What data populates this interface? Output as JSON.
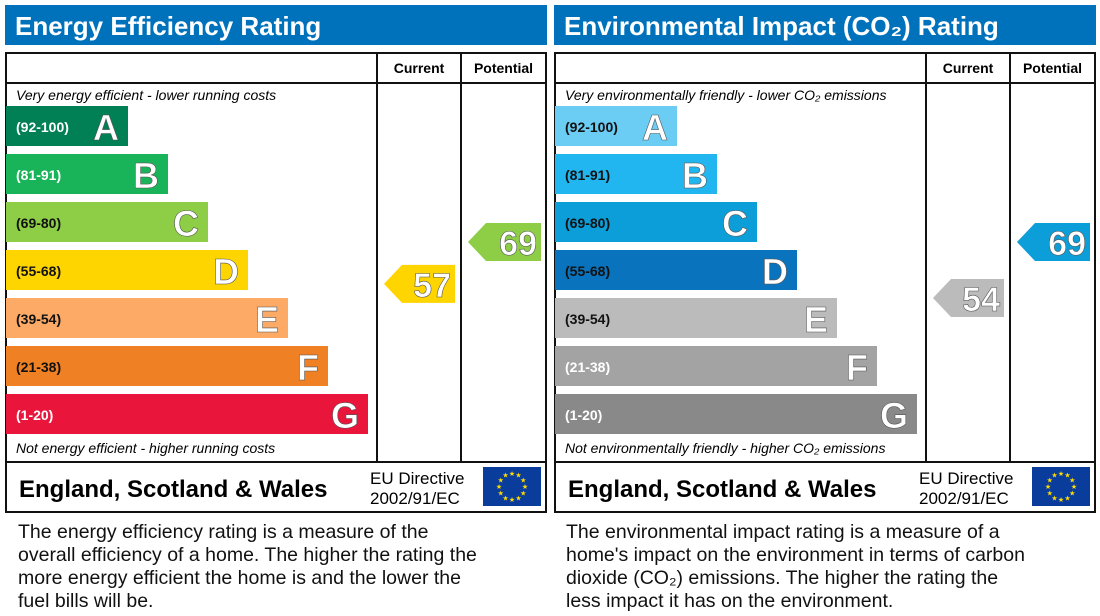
{
  "chart_data": [
    {
      "type": "bar",
      "title": "Energy Efficiency Rating",
      "top_note": "Very energy efficient - lower running costs",
      "bottom_note": "Not energy efficient - higher running costs",
      "columns": [
        "Current",
        "Potential"
      ],
      "categories": [
        "A",
        "B",
        "C",
        "D",
        "E",
        "F",
        "G"
      ],
      "ranges": [
        "(92-100)",
        "(81-91)",
        "(69-80)",
        "(55-68)",
        "(39-54)",
        "(21-38)",
        "(1-20)"
      ],
      "bounds": [
        [
          92,
          100
        ],
        [
          81,
          91
        ],
        [
          69,
          80
        ],
        [
          55,
          68
        ],
        [
          39,
          54
        ],
        [
          21,
          38
        ],
        [
          1,
          20
        ]
      ],
      "colors": [
        "#008054",
        "#19b459",
        "#8dce46",
        "#ffd500",
        "#fcaa65",
        "#ef8023",
        "#e9153b"
      ],
      "range_text_colors": [
        "#fff",
        "#fff",
        "#111",
        "#111",
        "#111",
        "#111",
        "#fff"
      ],
      "current": {
        "value": 57,
        "color": "#ffd500"
      },
      "potential": {
        "value": 69,
        "color": "#8dce46"
      },
      "footer": {
        "region": "England, Scotland & Wales",
        "directive_line1": "EU Directive",
        "directive_line2": "2002/91/EC"
      },
      "description": "The energy efficiency rating is a measure of the overall efficiency of a home. The higher the rating the more energy efficient the home is and the lower the fuel bills will be."
    },
    {
      "type": "bar",
      "title": "Environmental Impact (CO₂) Rating",
      "top_note": "Very environmentally friendly - lower CO₂ emissions",
      "bottom_note": "Not environmentally friendly - higher CO₂ emissions",
      "columns": [
        "Current",
        "Potential"
      ],
      "categories": [
        "A",
        "B",
        "C",
        "D",
        "E",
        "F",
        "G"
      ],
      "ranges": [
        "(92-100)",
        "(81-91)",
        "(69-80)",
        "(55-68)",
        "(39-54)",
        "(21-38)",
        "(1-20)"
      ],
      "bounds": [
        [
          92,
          100
        ],
        [
          81,
          91
        ],
        [
          69,
          80
        ],
        [
          55,
          68
        ],
        [
          39,
          54
        ],
        [
          21,
          38
        ],
        [
          1,
          20
        ]
      ],
      "colors": [
        "#6bcdf4",
        "#21b6f0",
        "#0c9ed9",
        "#0a73bd",
        "#bbbbbb",
        "#a3a3a3",
        "#898989"
      ],
      "range_text_colors": [
        "#111",
        "#111",
        "#111",
        "#111",
        "#111",
        "#fff",
        "#fff"
      ],
      "current": {
        "value": 54,
        "color": "#bbbbbb"
      },
      "potential": {
        "value": 69,
        "color": "#0c9ed9"
      },
      "footer": {
        "region": "England, Scotland & Wales",
        "directive_line1": "EU Directive",
        "directive_line2": "2002/91/EC"
      },
      "description": "The environmental impact rating is a measure of a home's impact on the environment in terms of carbon dioxide (CO₂) emissions. The higher the rating the less impact it has on the environment."
    }
  ],
  "colors": {
    "title_bar": "#0072bc",
    "eu_flag": "#0a3c9c",
    "eu_stars": "#ffdd00"
  }
}
